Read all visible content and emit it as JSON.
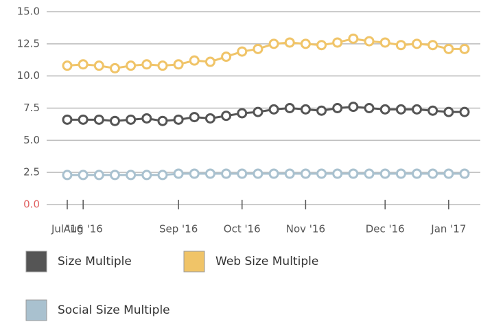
{
  "chart_data": {
    "type": "line",
    "categories": [
      "Jul '16",
      "Aug '16",
      null,
      null,
      null,
      null,
      null,
      "Sep '16",
      null,
      null,
      null,
      "Oct '16",
      null,
      null,
      null,
      "Nov '16",
      null,
      null,
      null,
      null,
      "Dec '16",
      null,
      null,
      null,
      "Jan '17",
      null
    ],
    "series": [
      {
        "name": "Size Multiple",
        "color": "#555555",
        "values": [
          6.6,
          6.6,
          6.6,
          6.5,
          6.6,
          6.7,
          6.5,
          6.6,
          6.8,
          6.7,
          6.9,
          7.1,
          7.2,
          7.4,
          7.5,
          7.4,
          7.3,
          7.5,
          7.6,
          7.5,
          7.4,
          7.4,
          7.4,
          7.3,
          7.2,
          7.2
        ]
      },
      {
        "name": "Web Size Multiple",
        "color": "#f0c468",
        "values": [
          10.8,
          10.9,
          10.8,
          10.6,
          10.8,
          10.9,
          10.8,
          10.9,
          11.2,
          11.1,
          11.5,
          11.9,
          12.1,
          12.5,
          12.6,
          12.5,
          12.4,
          12.6,
          12.9,
          12.7,
          12.6,
          12.4,
          12.5,
          12.4,
          12.1,
          12.1
        ]
      },
      {
        "name": "Social Size Multiple",
        "color": "#a9c1cf",
        "values": [
          2.3,
          2.3,
          2.3,
          2.3,
          2.3,
          2.3,
          2.3,
          2.4,
          2.4,
          2.4,
          2.4,
          2.4,
          2.4,
          2.4,
          2.4,
          2.4,
          2.4,
          2.4,
          2.4,
          2.4,
          2.4,
          2.4,
          2.4,
          2.4,
          2.4,
          2.4
        ]
      }
    ],
    "ylim": [
      0,
      15
    ],
    "yticks": [
      {
        "value": 0,
        "label": "0.0"
      },
      {
        "value": 2.5,
        "label": "2.5"
      },
      {
        "value": 5,
        "label": "5.0"
      },
      {
        "value": 7.5,
        "label": "7.5"
      },
      {
        "value": 10,
        "label": "10.0"
      },
      {
        "value": 12.5,
        "label": "12.5"
      },
      {
        "value": 15,
        "label": "15.0"
      }
    ],
    "grid": true
  }
}
